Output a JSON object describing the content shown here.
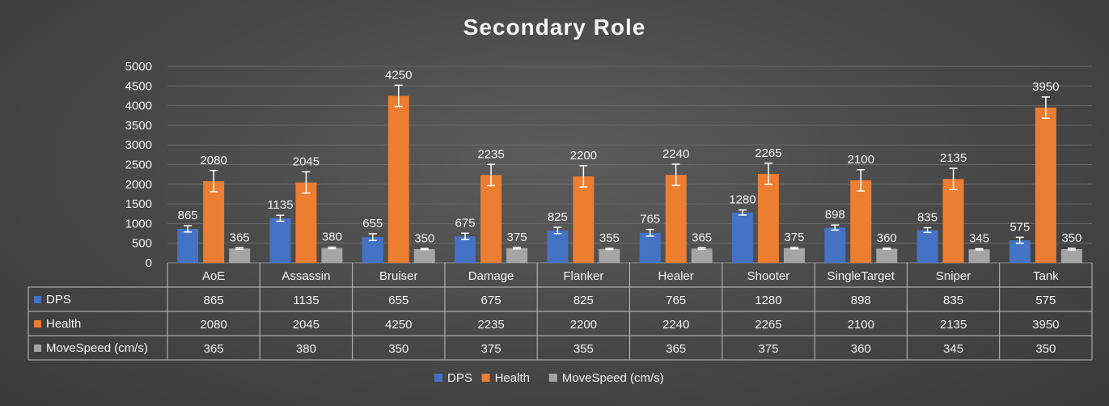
{
  "chart_data": {
    "type": "bar",
    "title": "Secondary Role",
    "categories": [
      "AoE",
      "Assassin",
      "Bruiser",
      "Damage",
      "Flanker",
      "Healer",
      "Shooter",
      "SingleTarget",
      "Sniper",
      "Tank"
    ],
    "series": [
      {
        "name": "DPS",
        "color": "#4472c4",
        "values": [
          865,
          1135,
          655,
          675,
          825,
          765,
          1280,
          898,
          835,
          575
        ],
        "errors": [
          80,
          75,
          85,
          80,
          80,
          85,
          65,
          65,
          60,
          75
        ]
      },
      {
        "name": "Health",
        "color": "#ed7d31",
        "values": [
          2080,
          2045,
          4250,
          2235,
          2200,
          2240,
          2265,
          2100,
          2135,
          3950
        ],
        "errors": [
          270,
          270,
          270,
          270,
          270,
          270,
          270,
          270,
          270,
          270
        ]
      },
      {
        "name": "MoveSpeed (cm/s)",
        "color": "#a5a5a5",
        "values": [
          365,
          380,
          350,
          375,
          355,
          365,
          375,
          360,
          345,
          350
        ],
        "errors": [
          20,
          20,
          15,
          20,
          15,
          20,
          20,
          15,
          15,
          20
        ]
      }
    ],
    "yticks": [
      "0",
      "500",
      "1000",
      "1500",
      "2000",
      "2500",
      "3000",
      "3500",
      "4000",
      "4500",
      "5000"
    ],
    "ylim": [
      0,
      5000
    ],
    "grid": true,
    "data_table": true,
    "legend_position": "bottom"
  }
}
